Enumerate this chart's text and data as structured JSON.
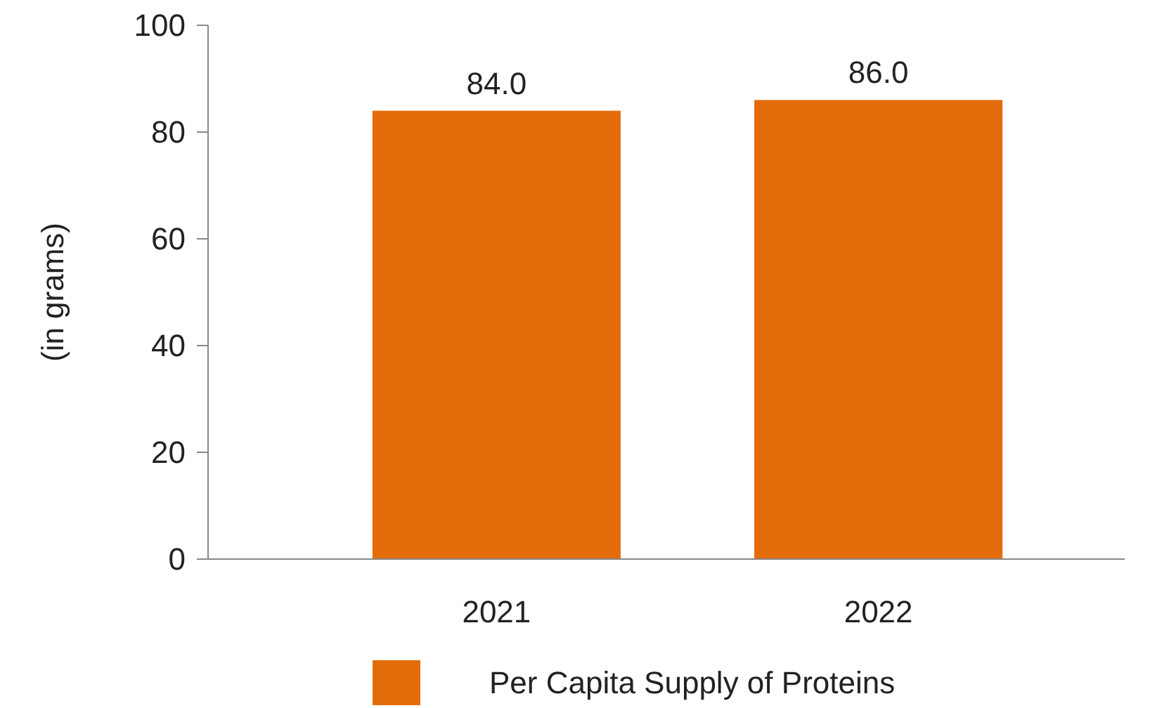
{
  "chart_data": {
    "type": "bar",
    "ylabel": "(in grams)",
    "categories": [
      "2021",
      "2022"
    ],
    "series": [
      {
        "name": "Per Capita Supply of Proteins",
        "color": "#e36c0a",
        "values": [
          84.0,
          86.0
        ],
        "value_labels": [
          "84.0",
          "86.0"
        ]
      }
    ],
    "ylim": [
      0,
      100
    ],
    "yticks": [
      0,
      20,
      40,
      60,
      80,
      100
    ],
    "grid": false,
    "legend": "bottom"
  }
}
